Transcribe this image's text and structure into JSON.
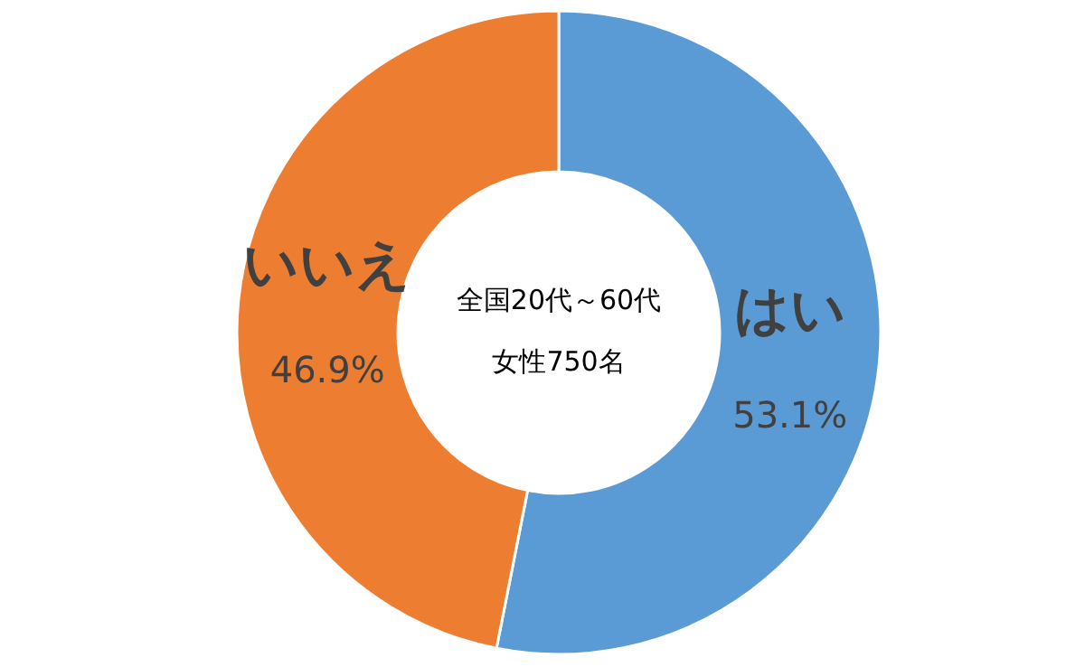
{
  "chart_data": {
    "type": "donut",
    "categories": [
      "はい",
      "いいえ"
    ],
    "values": [
      53.1,
      46.9
    ],
    "colors": [
      "#5b9bd5",
      "#ed7d31"
    ],
    "value_labels": [
      "53.1%",
      "46.9%"
    ],
    "annotations": [
      "全国20代～60代",
      "女性750名"
    ]
  }
}
